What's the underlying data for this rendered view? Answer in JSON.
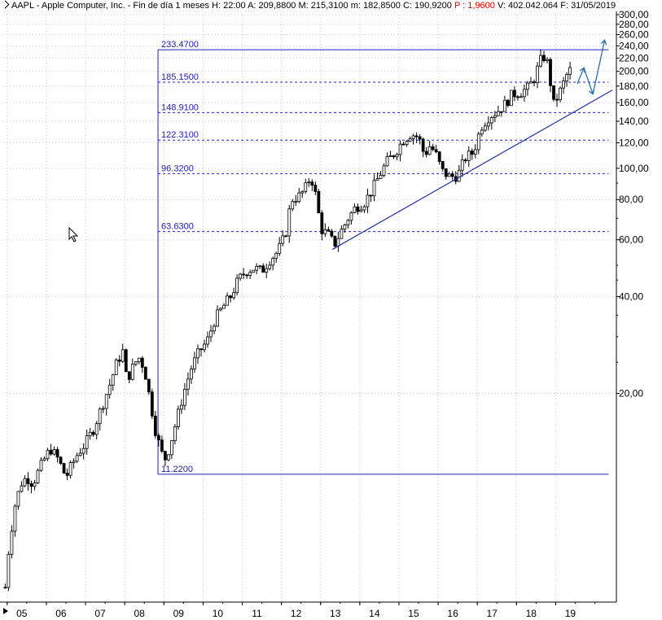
{
  "header": {
    "symbol": "AAPL",
    "name": "Apple Computer, Inc.",
    "timeframe": "Fin de día 1 meses",
    "hour": "H: 22:00",
    "open": "A: 209,8800",
    "high": "M: 215,3100",
    "low": "m: 182,8500",
    "close": "C: 190,9200",
    "change": "P : 1,9600",
    "volume": "V: 402.042.064",
    "date": "F: 31/05/2019"
  },
  "colors": {
    "fib": "#2020c0",
    "trend": "#2030a0",
    "forecast": "#2a6eb0",
    "candle": "#000000",
    "change_text": "#e00000"
  },
  "chart_data": {
    "type": "candlestick",
    "y_scale": "log",
    "ylim": [
      4.5,
      300
    ],
    "y_ticks": [
      {
        "value": 300,
        "label": "300,00"
      },
      {
        "value": 280,
        "label": "280,00"
      },
      {
        "value": 260,
        "label": "260,00"
      },
      {
        "value": 240,
        "label": "240,00"
      },
      {
        "value": 220,
        "label": "220,00"
      },
      {
        "value": 200,
        "label": "200,00"
      },
      {
        "value": 180,
        "label": "180,00"
      },
      {
        "value": 160,
        "label": "160,00"
      },
      {
        "value": 140,
        "label": "140,00"
      },
      {
        "value": 120,
        "label": "120,00"
      },
      {
        "value": 100,
        "label": "100,00"
      },
      {
        "value": 80,
        "label": "80,00"
      },
      {
        "value": 60,
        "label": "60,00"
      },
      {
        "value": 40,
        "label": "40,00"
      },
      {
        "value": 20,
        "label": "20,00"
      }
    ],
    "x_ticks": [
      "05",
      "06",
      "07",
      "08",
      "09",
      "10",
      "11",
      "12",
      "13",
      "14",
      "15",
      "16",
      "17",
      "18",
      "19"
    ],
    "x_start_year": 2004.9,
    "x_end_year": 2020.55,
    "series_points": [
      [
        2004.95,
        5.0
      ],
      [
        2005.0,
        6.0
      ],
      [
        2005.1,
        7.5
      ],
      [
        2005.2,
        9.0
      ],
      [
        2005.35,
        10.5
      ],
      [
        2005.5,
        11.0
      ],
      [
        2005.65,
        10.5
      ],
      [
        2005.8,
        11.5
      ],
      [
        2005.95,
        12.5
      ],
      [
        2006.1,
        13.5
      ],
      [
        2006.3,
        12.5
      ],
      [
        2006.5,
        11.0
      ],
      [
        2006.65,
        12.0
      ],
      [
        2006.8,
        13.0
      ],
      [
        2007.0,
        14.0
      ],
      [
        2007.2,
        15.5
      ],
      [
        2007.4,
        18.0
      ],
      [
        2007.6,
        21.0
      ],
      [
        2007.8,
        25.0
      ],
      [
        2007.95,
        27.0
      ],
      [
        2008.05,
        22.0
      ],
      [
        2008.2,
        24.0
      ],
      [
        2008.35,
        26.0
      ],
      [
        2008.5,
        24.0
      ],
      [
        2008.65,
        19.0
      ],
      [
        2008.8,
        15.0
      ],
      [
        2008.95,
        13.0
      ],
      [
        2009.05,
        12.5
      ],
      [
        2009.2,
        14.5
      ],
      [
        2009.35,
        17.0
      ],
      [
        2009.5,
        20.0
      ],
      [
        2009.7,
        24.0
      ],
      [
        2009.9,
        27.0
      ],
      [
        2010.1,
        29.0
      ],
      [
        2010.3,
        34.0
      ],
      [
        2010.5,
        37.0
      ],
      [
        2010.7,
        40.0
      ],
      [
        2010.9,
        45.0
      ],
      [
        2011.1,
        48.0
      ],
      [
        2011.3,
        49.0
      ],
      [
        2011.5,
        48.0
      ],
      [
        2011.7,
        52.0
      ],
      [
        2011.9,
        55.0
      ],
      [
        2012.1,
        62.0
      ],
      [
        2012.25,
        80.0
      ],
      [
        2012.45,
        82.0
      ],
      [
        2012.6,
        86.0
      ],
      [
        2012.75,
        95.0
      ],
      [
        2012.9,
        80.0
      ],
      [
        2013.0,
        65.0
      ],
      [
        2013.2,
        62.0
      ],
      [
        2013.35,
        58.0
      ],
      [
        2013.5,
        63.0
      ],
      [
        2013.7,
        70.0
      ],
      [
        2013.9,
        76.0
      ],
      [
        2014.1,
        78.0
      ],
      [
        2014.3,
        85.0
      ],
      [
        2014.5,
        95.0
      ],
      [
        2014.7,
        105.0
      ],
      [
        2014.9,
        112.0
      ],
      [
        2015.1,
        122.0
      ],
      [
        2015.3,
        128.0
      ],
      [
        2015.5,
        125.0
      ],
      [
        2015.65,
        110.0
      ],
      [
        2015.8,
        118.0
      ],
      [
        2015.95,
        110.0
      ],
      [
        2016.1,
        98.0
      ],
      [
        2016.3,
        94.0
      ],
      [
        2016.5,
        95.0
      ],
      [
        2016.7,
        108.0
      ],
      [
        2016.9,
        112.0
      ],
      [
        2017.1,
        135.0
      ],
      [
        2017.3,
        145.0
      ],
      [
        2017.5,
        150.0
      ],
      [
        2017.7,
        158.0
      ],
      [
        2017.9,
        170.0
      ],
      [
        2018.1,
        172.0
      ],
      [
        2018.3,
        178.0
      ],
      [
        2018.45,
        190.0
      ],
      [
        2018.6,
        215.0
      ],
      [
        2018.75,
        225.0
      ],
      [
        2018.85,
        190.0
      ],
      [
        2018.95,
        158.0
      ],
      [
        2019.1,
        172.0
      ],
      [
        2019.25,
        190.0
      ],
      [
        2019.35,
        205.0
      ],
      [
        2019.42,
        191.0
      ]
    ],
    "fibonacci_levels": [
      {
        "value": 233.47,
        "label": "233.4700"
      },
      {
        "value": 185.15,
        "label": "185.1500"
      },
      {
        "value": 148.91,
        "label": "148.9100"
      },
      {
        "value": 122.31,
        "label": "122.3100"
      },
      {
        "value": 96.32,
        "label": "96.3200"
      },
      {
        "value": 63.63,
        "label": "63.6300"
      },
      {
        "value": 11.22,
        "label": "11.2200"
      }
    ],
    "fib_x_start": 2008.85,
    "fib_x_end": 2020.35,
    "trendline": [
      [
        2013.3,
        56.0
      ],
      [
        2020.45,
        175.0
      ]
    ],
    "forecast_path": [
      [
        2019.55,
        183.0
      ],
      [
        2019.72,
        205.0
      ],
      [
        2019.95,
        170.0
      ],
      [
        2020.25,
        250.0
      ]
    ]
  }
}
